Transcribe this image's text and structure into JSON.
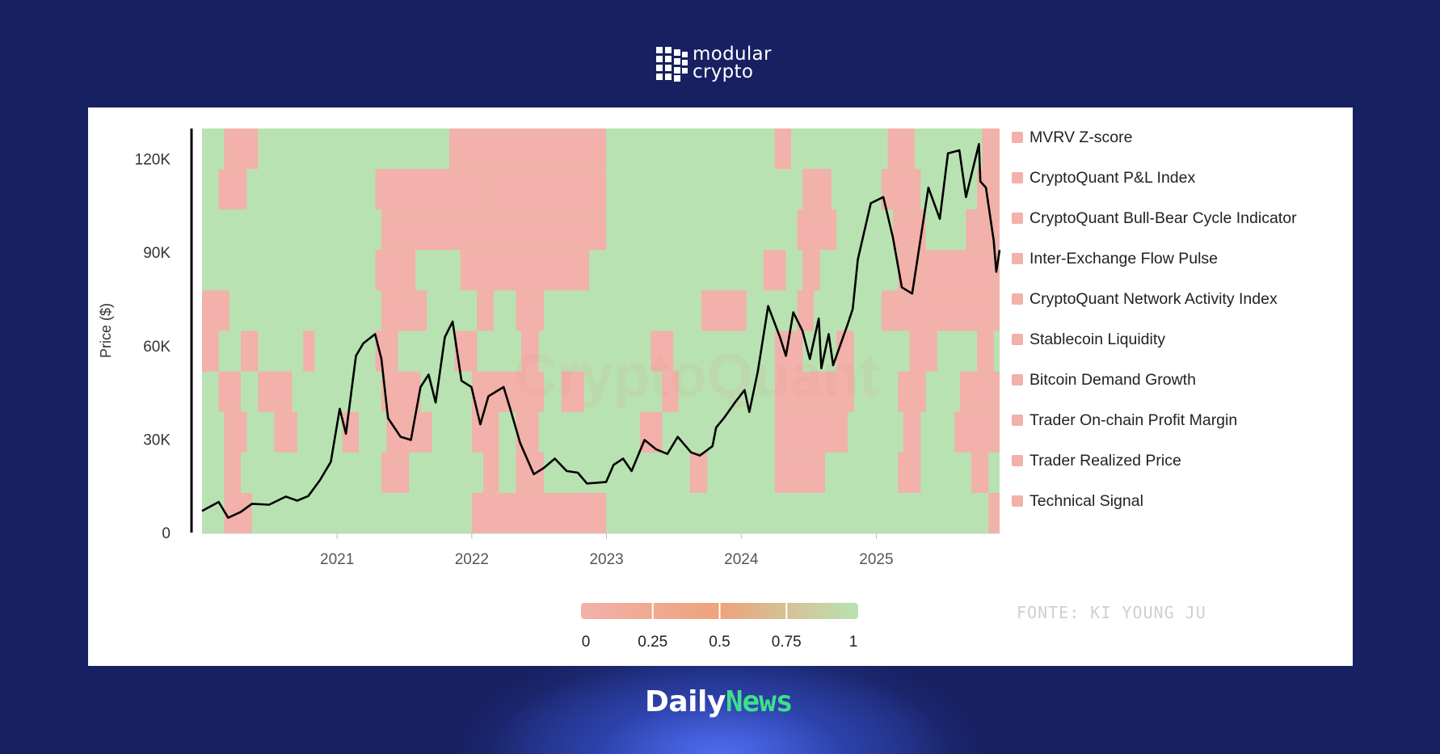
{
  "brand": {
    "logo_line1": "modular",
    "logo_line2": "crypto",
    "footer_left": "Daily",
    "footer_right": "News"
  },
  "source": "FONTE: KI YOUNG JU",
  "watermark": "CryptoQuant",
  "colors": {
    "background": "#172060",
    "bear": "#f2b1aa",
    "bull": "#b9e2b2",
    "mid": "#eea37a",
    "price": "#000000",
    "footer_accent": "#3ee08a"
  },
  "chart_data": {
    "type": "heatmap",
    "ylabel": "Price ($)",
    "yticks": [
      0,
      30000,
      60000,
      90000,
      120000
    ],
    "ytick_labels": [
      "0",
      "30K",
      "60K",
      "90K",
      "120K"
    ],
    "ylim": [
      0,
      130000
    ],
    "xlim": [
      "2020-01-01",
      "2025-12-01"
    ],
    "xticks": [
      "2021",
      "2022",
      "2023",
      "2024",
      "2025"
    ],
    "rows": [
      "MVRV Z-score",
      "CryptoQuant P&L Index",
      "CryptoQuant Bull-Bear Cycle Indicator",
      "Inter-Exchange Flow Pulse",
      "CryptoQuant Network Activity Index",
      "Stablecoin Liquidity",
      "Bitcoin Demand Growth",
      "Trader On-chain Profit Margin",
      "Trader Realized Price",
      "Technical Signal"
    ],
    "colorscale": {
      "min": 0,
      "max": 1,
      "ticks": [
        "0",
        "0.25",
        "0.5",
        "0.75",
        "1"
      ],
      "colors": [
        "#f2b1aa",
        "#eea37a",
        "#b9e2b2"
      ]
    },
    "bear_periods": [
      [
        [
          "2020-03-01",
          "2020-06-01"
        ],
        [
          "2021-11-01",
          "2022-12-31"
        ],
        [
          "2024-04-01",
          "2024-05-15"
        ],
        [
          "2025-02-01",
          "2025-04-15"
        ],
        [
          "2025-10-15",
          "2025-12-01"
        ]
      ],
      [
        [
          "2020-02-15",
          "2020-05-01"
        ],
        [
          "2021-04-15",
          "2022-03-01"
        ],
        [
          "2022-03-01",
          "2022-12-31"
        ],
        [
          "2024-06-15",
          "2024-09-01"
        ],
        [
          "2025-01-15",
          "2025-05-01"
        ],
        [
          "2025-10-01",
          "2025-12-01"
        ]
      ],
      [
        [
          "2021-05-01",
          "2022-12-31"
        ],
        [
          "2024-06-01",
          "2024-09-15"
        ],
        [
          "2025-02-15",
          "2025-05-15"
        ],
        [
          "2025-09-01",
          "2025-12-01"
        ]
      ],
      [
        [
          "2021-04-15",
          "2021-08-01"
        ],
        [
          "2021-12-01",
          "2022-11-15"
        ],
        [
          "2024-03-01",
          "2024-05-01"
        ],
        [
          "2024-06-15",
          "2024-08-01"
        ],
        [
          "2025-03-01",
          "2025-12-01"
        ]
      ],
      [
        [
          "2020-01-01",
          "2020-03-15"
        ],
        [
          "2021-05-01",
          "2021-09-01"
        ],
        [
          "2022-01-15",
          "2022-03-01"
        ],
        [
          "2022-05-01",
          "2022-07-15"
        ],
        [
          "2023-09-15",
          "2024-01-15"
        ],
        [
          "2024-06-01",
          "2024-07-15"
        ],
        [
          "2025-01-15",
          "2025-12-01"
        ]
      ],
      [
        [
          "2020-01-01",
          "2020-02-15"
        ],
        [
          "2020-04-15",
          "2020-06-01"
        ],
        [
          "2020-10-01",
          "2020-11-01"
        ],
        [
          "2021-04-15",
          "2021-06-15"
        ],
        [
          "2021-11-15",
          "2022-01-15"
        ],
        [
          "2022-05-15",
          "2022-07-01"
        ],
        [
          "2023-05-01",
          "2023-07-01"
        ],
        [
          "2024-04-01",
          "2024-06-15"
        ],
        [
          "2024-09-15",
          "2024-11-01"
        ],
        [
          "2025-04-01",
          "2025-06-15"
        ],
        [
          "2025-10-01",
          "2025-11-15"
        ]
      ],
      [
        [
          "2020-02-15",
          "2020-04-15"
        ],
        [
          "2020-06-01",
          "2020-09-01"
        ],
        [
          "2021-05-01",
          "2021-08-15"
        ],
        [
          "2022-01-01",
          "2022-07-15"
        ],
        [
          "2022-09-01",
          "2022-11-01"
        ],
        [
          "2023-06-01",
          "2023-07-15"
        ],
        [
          "2024-04-01",
          "2024-11-01"
        ],
        [
          "2025-03-01",
          "2025-05-15"
        ],
        [
          "2025-08-15",
          "2025-12-01"
        ]
      ],
      [
        [
          "2020-03-01",
          "2020-05-01"
        ],
        [
          "2020-07-15",
          "2020-09-15"
        ],
        [
          "2021-01-15",
          "2021-03-01"
        ],
        [
          "2021-05-15",
          "2021-09-15"
        ],
        [
          "2022-01-01",
          "2022-03-15"
        ],
        [
          "2022-05-01",
          "2022-07-01"
        ],
        [
          "2023-04-01",
          "2023-06-01"
        ],
        [
          "2024-04-01",
          "2024-10-15"
        ],
        [
          "2025-03-15",
          "2025-05-01"
        ],
        [
          "2025-08-01",
          "2025-12-01"
        ]
      ],
      [
        [
          "2020-03-01",
          "2020-04-15"
        ],
        [
          "2021-05-01",
          "2021-07-15"
        ],
        [
          "2022-02-01",
          "2022-03-15"
        ],
        [
          "2022-05-01",
          "2022-07-15"
        ],
        [
          "2023-08-15",
          "2023-10-01"
        ],
        [
          "2024-04-01",
          "2024-08-15"
        ],
        [
          "2025-03-01",
          "2025-05-01"
        ],
        [
          "2025-09-15",
          "2025-11-01"
        ]
      ],
      [
        [
          "2020-03-01",
          "2020-05-15"
        ],
        [
          "2022-01-01",
          "2022-12-31"
        ],
        [
          "2025-11-01",
          "2025-12-01"
        ]
      ]
    ],
    "series": [
      {
        "name": "Bitcoin price",
        "x": [
          "2020-01-01",
          "2020-02-15",
          "2020-03-12",
          "2020-04-15",
          "2020-05-15",
          "2020-07-01",
          "2020-08-15",
          "2020-09-15",
          "2020-10-15",
          "2020-11-15",
          "2020-12-15",
          "2021-01-08",
          "2021-01-25",
          "2021-02-21",
          "2021-03-13",
          "2021-04-14",
          "2021-05-01",
          "2021-05-19",
          "2021-06-22",
          "2021-07-20",
          "2021-08-15",
          "2021-09-06",
          "2021-09-25",
          "2021-10-20",
          "2021-11-10",
          "2021-12-04",
          "2021-12-31",
          "2022-01-24",
          "2022-02-15",
          "2022-03-28",
          "2022-04-15",
          "2022-05-12",
          "2022-06-18",
          "2022-07-15",
          "2022-08-14",
          "2022-09-15",
          "2022-10-15",
          "2022-11-09",
          "2022-12-31",
          "2023-01-20",
          "2023-02-15",
          "2023-03-10",
          "2023-04-14",
          "2023-05-15",
          "2023-06-15",
          "2023-07-13",
          "2023-08-18",
          "2023-09-11",
          "2023-10-15",
          "2023-10-25",
          "2023-11-15",
          "2023-12-15",
          "2024-01-10",
          "2024-01-23",
          "2024-02-15",
          "2024-03-14",
          "2024-04-15",
          "2024-05-01",
          "2024-05-21",
          "2024-06-15",
          "2024-07-05",
          "2024-07-29",
          "2024-08-05",
          "2024-08-25",
          "2024-09-06",
          "2024-10-15",
          "2024-10-29",
          "2024-11-12",
          "2024-12-17",
          "2025-01-20",
          "2025-02-15",
          "2025-03-11",
          "2025-04-08",
          "2025-05-22",
          "2025-06-22",
          "2025-07-14",
          "2025-08-14",
          "2025-09-01",
          "2025-10-06",
          "2025-10-10",
          "2025-10-25",
          "2025-11-15",
          "2025-11-22",
          "2025-12-01"
        ],
        "values": [
          7200,
          10100,
          5000,
          6900,
          9500,
          9200,
          11800,
          10500,
          12000,
          17000,
          23000,
          40000,
          32000,
          57000,
          61000,
          64000,
          56000,
          37000,
          31000,
          30000,
          47000,
          51000,
          42000,
          63000,
          68000,
          49000,
          47000,
          35000,
          44000,
          47000,
          40000,
          29000,
          19000,
          21000,
          24000,
          20000,
          19500,
          16000,
          16500,
          22000,
          24000,
          20000,
          30000,
          27000,
          25500,
          31000,
          26000,
          25000,
          28000,
          34000,
          37000,
          42000,
          46000,
          39000,
          52000,
          73000,
          63000,
          57000,
          71000,
          65000,
          56000,
          69000,
          53000,
          64000,
          54000,
          67000,
          72000,
          88000,
          106000,
          108000,
          95000,
          79000,
          77000,
          111000,
          101000,
          122000,
          123000,
          108000,
          125000,
          113000,
          111000,
          94000,
          84000,
          91000
        ]
      }
    ]
  }
}
